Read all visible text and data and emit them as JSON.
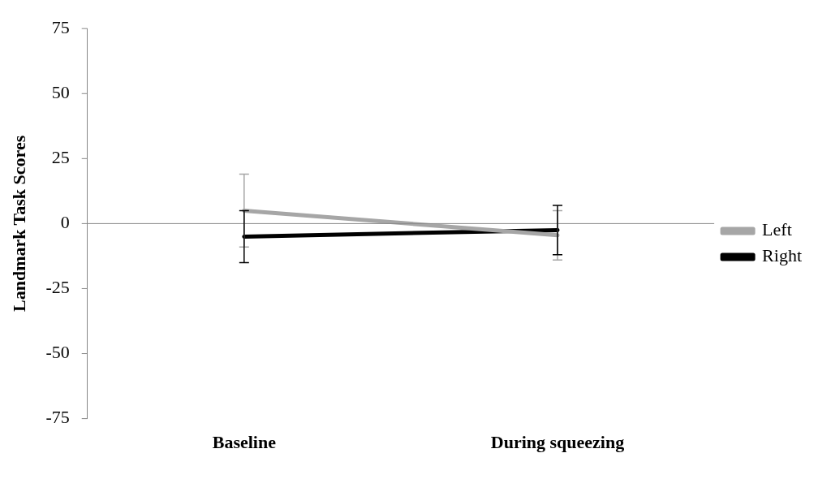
{
  "chart_data": {
    "type": "line",
    "ylabel": "Landmark Task Scores",
    "categories": [
      "Baseline",
      "During squeezing"
    ],
    "series": [
      {
        "name": "Left",
        "color": "#a6a6a6",
        "values": [
          5,
          -4.5
        ],
        "errors": [
          14,
          9.5
        ]
      },
      {
        "name": "Right",
        "color": "#000000",
        "values": [
          -5,
          -2.5
        ],
        "errors": [
          10,
          9.5
        ]
      }
    ],
    "ylim": [
      -75,
      75
    ],
    "yticks": [
      -75,
      -50,
      -25,
      0,
      25,
      50,
      75
    ],
    "ref_lines": [
      {
        "axis": "y",
        "value": 0,
        "color": "#888888"
      }
    ],
    "grid": false,
    "legend": "right",
    "marker": "none",
    "line_style": "solid"
  }
}
